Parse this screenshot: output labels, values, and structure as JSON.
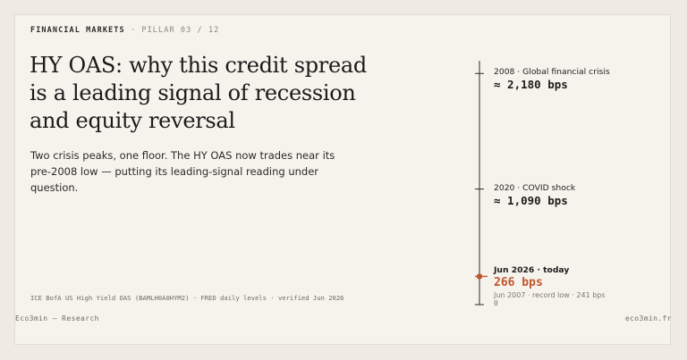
{
  "header": {
    "section": "FINANCIAL MARKETS",
    "separator": "·",
    "pillar": "PILLAR 03 / 12"
  },
  "title": "HY OAS: why this credit spread is a leading signal of recession and equity reversal",
  "lede": "Two crisis peaks, one floor. The HY OAS now trades near its pre-2008 low — putting its leading-signal reading under question.",
  "source": "ICE BofA US High Yield OAS (BAMLH0A0HYM2) · FRED daily levels · verified Jun 2026",
  "footer": {
    "brand": "Eco3min — Research",
    "site": "eco3min.fr"
  },
  "scale": {
    "zero_label": "0",
    "max_bps": 2300,
    "accent": "#c0562e",
    "markers": [
      {
        "caption": "2008 · Global financial crisis",
        "value_text": "≈ 2,180 bps",
        "bps": 2180
      },
      {
        "caption": "2020 · COVID shock",
        "value_text": "≈ 1,090 bps",
        "bps": 1090
      }
    ],
    "today": {
      "caption": "Jun 2026 · today",
      "value_text": "266 bps",
      "bps": 266,
      "note": "Jun 2007 · record low · 241 bps"
    }
  }
}
